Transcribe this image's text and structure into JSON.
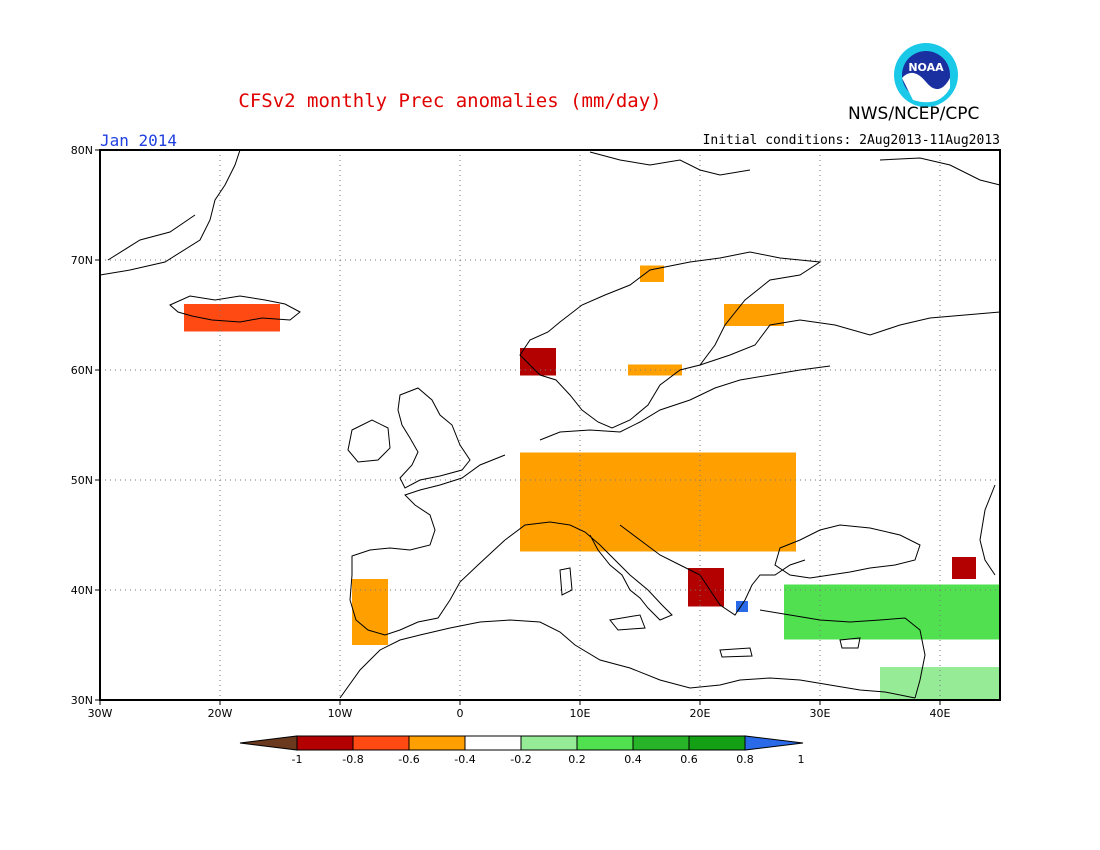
{
  "header": {
    "title": "CFSv2 monthly Prec anomalies (mm/day)",
    "agency": "NWS/NCEP/CPC",
    "logo_text": "NOAA",
    "month": "Jan 2014",
    "initial_conditions": "Initial conditions: 2Aug2013-11Aug2013"
  },
  "map": {
    "lat_labels": [
      "80N",
      "70N",
      "60N",
      "50N",
      "40N",
      "30N"
    ],
    "lon_labels": [
      "30W",
      "20W",
      "10W",
      "0",
      "10E",
      "20E",
      "30E",
      "40E"
    ]
  },
  "colorbar": {
    "labels": [
      "-1",
      "-0.8",
      "-0.6",
      "-0.4",
      "-0.2",
      "0.2",
      "0.4",
      "0.6",
      "0.8",
      "1"
    ],
    "colors": [
      "#6b3a1e",
      "#b30000",
      "#ff4a14",
      "#ffa000",
      "#ffffff",
      "#96eb96",
      "#50e050",
      "#28b428",
      "#14a014",
      "#2a6ae8"
    ]
  },
  "chart_data": {
    "type": "heatmap",
    "title": "CFSv2 monthly Prec anomalies (mm/day)",
    "period": "Jan 2014",
    "lon_range": [
      -30,
      45
    ],
    "lat_range": [
      30,
      80
    ],
    "units": "mm/day",
    "anomaly_regions": [
      {
        "name": "Iceland",
        "lon": [
          -23,
          -15
        ],
        "lat": [
          63.5,
          66
        ],
        "value": -0.5
      },
      {
        "name": "Western Norway",
        "lon": [
          5,
          8
        ],
        "lat": [
          59.5,
          62
        ],
        "value": -0.8
      },
      {
        "name": "Northern Norway",
        "lon": [
          15,
          17
        ],
        "lat": [
          68,
          69.5
        ],
        "value": -0.3
      },
      {
        "name": "Finland",
        "lon": [
          22,
          27
        ],
        "lat": [
          64,
          66
        ],
        "value": -0.3
      },
      {
        "name": "Southern Sweden",
        "lon": [
          14,
          18.5
        ],
        "lat": [
          59.5,
          60.5
        ],
        "value": -0.3
      },
      {
        "name": "Central Europe",
        "lon": [
          5,
          28
        ],
        "lat": [
          43.5,
          52.5
        ],
        "value": -0.3
      },
      {
        "name": "Balkans",
        "lon": [
          19,
          22
        ],
        "lat": [
          38.5,
          42
        ],
        "value": -0.8
      },
      {
        "name": "Iberia west",
        "lon": [
          -9,
          -6
        ],
        "lat": [
          35,
          41
        ],
        "value": -0.3
      },
      {
        "name": "Caucasus",
        "lon": [
          41,
          43
        ],
        "lat": [
          41,
          43
        ],
        "value": -0.8
      },
      {
        "name": "Turkey",
        "lon": [
          27,
          45
        ],
        "lat": [
          35.5,
          40.5
        ],
        "value": 0.4
      },
      {
        "name": "Aegean",
        "lon": [
          23,
          24
        ],
        "lat": [
          38,
          39
        ],
        "value": 1.0
      },
      {
        "name": "North Africa east",
        "lon": [
          35,
          45
        ],
        "lat": [
          30,
          33
        ],
        "value": 0.3
      }
    ]
  }
}
